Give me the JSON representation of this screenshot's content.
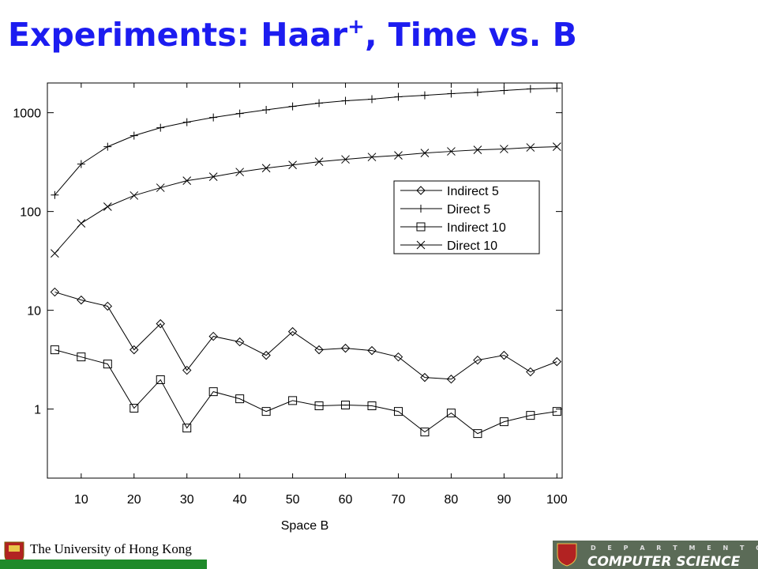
{
  "slide": {
    "title": [
      "Experiments: Haar",
      "+",
      ", Time vs. B"
    ],
    "university": "The University of Hong Kong",
    "department_top": "D E P A R T M E N T   O F",
    "department": "COMPUTER SCIENCE"
  },
  "chart_data": {
    "type": "line",
    "x_label": "Space B",
    "x": [
      5,
      10,
      15,
      20,
      25,
      30,
      35,
      40,
      45,
      50,
      55,
      60,
      65,
      70,
      75,
      80,
      85,
      90,
      95,
      100
    ],
    "xlim": [
      3.6,
      101
    ],
    "xticks": [
      10,
      20,
      30,
      40,
      50,
      60,
      70,
      80,
      90,
      100
    ],
    "ylim": [
      0.2,
      2000
    ],
    "yticks": [
      1,
      10,
      100,
      1000
    ],
    "y_scale": "log",
    "legend": "right",
    "series": [
      {
        "name": "Indirect 5",
        "color": "#000000",
        "marker": "diamond",
        "values": [
          15.3,
          12.7,
          11.0,
          3.98,
          7.31,
          2.47,
          5.45,
          4.79,
          3.5,
          6.08,
          3.98,
          4.13,
          3.91,
          3.37,
          2.09,
          2.01,
          3.13,
          3.5,
          2.38,
          3.02
        ]
      },
      {
        "name": "Direct 5",
        "color": "#000000",
        "marker": "plus",
        "values": [
          147,
          302,
          453,
          586,
          705,
          802,
          895,
          982,
          1070,
          1160,
          1250,
          1320,
          1370,
          1450,
          1500,
          1560,
          1610,
          1680,
          1740,
          1770
        ]
      },
      {
        "name": "Indirect 10",
        "color": "#000000",
        "marker": "square",
        "values": [
          3.98,
          3.37,
          2.86,
          1.02,
          1.98,
          0.643,
          1.5,
          1.27,
          0.946,
          1.22,
          1.08,
          1.1,
          1.08,
          0.946,
          0.586,
          0.912,
          0.565,
          0.745,
          0.863,
          0.946
        ]
      },
      {
        "name": "Direct 10",
        "color": "#000000",
        "marker": "cross",
        "values": [
          37.7,
          75.9,
          112,
          145,
          174,
          205,
          225,
          251,
          275,
          296,
          319,
          337,
          356,
          370,
          391,
          406,
          421,
          429,
          445,
          453
        ]
      }
    ]
  }
}
